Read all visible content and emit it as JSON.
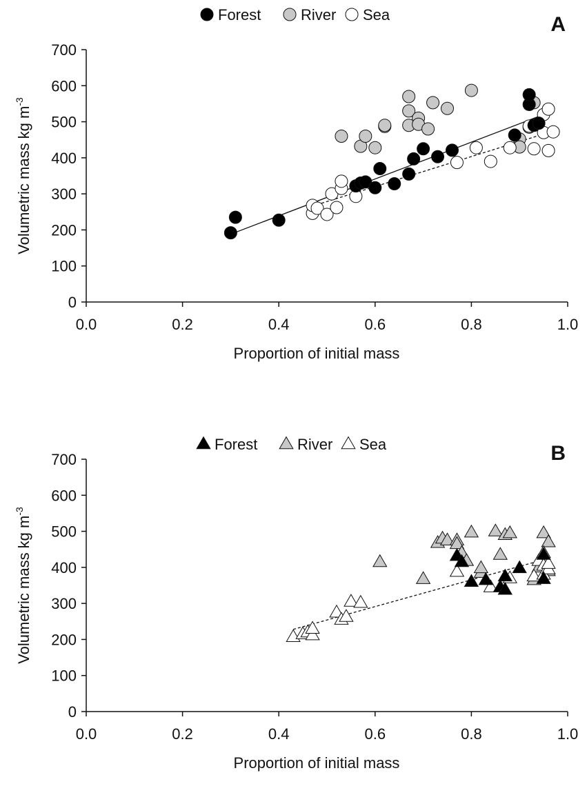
{
  "chart_data": [
    {
      "type": "scatter",
      "panel_label": "A",
      "title": "",
      "xlabel": "Proportion of initial mass",
      "ylabel": "Volumetric mass kg m",
      "ylabel_sup": "-3",
      "xlim": [
        0,
        1
      ],
      "ylim": [
        0,
        700
      ],
      "xticks": [
        "0.0",
        "0.2",
        "0.4",
        "0.6",
        "0.8",
        "1.0"
      ],
      "yticks": [
        "0",
        "100",
        "200",
        "300",
        "400",
        "500",
        "600",
        "700"
      ],
      "grid": false,
      "legend_position": "top",
      "marker": "circle",
      "series": [
        {
          "name": "Forest",
          "color": "#000000",
          "points": [
            [
              0.3,
              192
            ],
            [
              0.31,
              235
            ],
            [
              0.4,
              227
            ],
            [
              0.56,
              322
            ],
            [
              0.57,
              330
            ],
            [
              0.58,
              333
            ],
            [
              0.6,
              317
            ],
            [
              0.61,
              370
            ],
            [
              0.64,
              328
            ],
            [
              0.67,
              355
            ],
            [
              0.68,
              397
            ],
            [
              0.7,
              425
            ],
            [
              0.73,
              403
            ],
            [
              0.76,
              421
            ],
            [
              0.89,
              463
            ],
            [
              0.92,
              548
            ],
            [
              0.92,
              575
            ],
            [
              0.93,
              490
            ],
            [
              0.94,
              496
            ]
          ]
        },
        {
          "name": "River",
          "color": "#c8c8c8",
          "points": [
            [
              0.53,
              460
            ],
            [
              0.57,
              432
            ],
            [
              0.58,
              460
            ],
            [
              0.6,
              428
            ],
            [
              0.62,
              487
            ],
            [
              0.62,
              490
            ],
            [
              0.67,
              570
            ],
            [
              0.67,
              530
            ],
            [
              0.67,
              490
            ],
            [
              0.69,
              510
            ],
            [
              0.69,
              493
            ],
            [
              0.71,
              480
            ],
            [
              0.72,
              553
            ],
            [
              0.75,
              537
            ],
            [
              0.8,
              587
            ],
            [
              0.9,
              452
            ],
            [
              0.9,
              430
            ],
            [
              0.92,
              485
            ],
            [
              0.93,
              553
            ]
          ]
        },
        {
          "name": "Sea",
          "color": "#ffffff",
          "points": [
            [
              0.47,
              246
            ],
            [
              0.47,
              268
            ],
            [
              0.48,
              260
            ],
            [
              0.5,
              243
            ],
            [
              0.51,
              300
            ],
            [
              0.52,
              262
            ],
            [
              0.53,
              315
            ],
            [
              0.53,
              335
            ],
            [
              0.56,
              293
            ],
            [
              0.77,
              387
            ],
            [
              0.81,
              428
            ],
            [
              0.84,
              390
            ],
            [
              0.88,
              428
            ],
            [
              0.92,
              488
            ],
            [
              0.93,
              425
            ],
            [
              0.95,
              520
            ],
            [
              0.95,
              470
            ],
            [
              0.96,
              535
            ],
            [
              0.96,
              420
            ],
            [
              0.97,
              472
            ]
          ]
        }
      ],
      "trend_lines": [
        {
          "series": "Forest",
          "style": "solid",
          "from": [
            0.3,
            188
          ],
          "to": [
            0.94,
            515
          ]
        },
        {
          "series": "Sea",
          "style": "dashed",
          "from": [
            0.46,
            262
          ],
          "to": [
            0.96,
            470
          ]
        }
      ]
    },
    {
      "type": "scatter",
      "panel_label": "B",
      "title": "",
      "xlabel": "Proportion of initial mass",
      "ylabel": "Volumetric mass kg m",
      "ylabel_sup": "-3",
      "xlim": [
        0,
        1
      ],
      "ylim": [
        0,
        700
      ],
      "xticks": [
        "0.0",
        "0.2",
        "0.4",
        "0.6",
        "0.8",
        "1.0"
      ],
      "yticks": [
        "0",
        "100",
        "200",
        "300",
        "400",
        "500",
        "600",
        "700"
      ],
      "grid": false,
      "legend_position": "top",
      "marker": "triangle",
      "series": [
        {
          "name": "Forest",
          "color": "#000000",
          "points": [
            [
              0.77,
              432
            ],
            [
              0.78,
              415
            ],
            [
              0.8,
              360
            ],
            [
              0.83,
              365
            ],
            [
              0.86,
              345
            ],
            [
              0.87,
              338
            ],
            [
              0.87,
              375
            ],
            [
              0.9,
              398
            ],
            [
              0.95,
              368
            ],
            [
              0.95,
              435
            ]
          ]
        },
        {
          "name": "River",
          "color": "#c8c8c8",
          "points": [
            [
              0.61,
              415
            ],
            [
              0.7,
              368
            ],
            [
              0.73,
              468
            ],
            [
              0.74,
              480
            ],
            [
              0.75,
              475
            ],
            [
              0.77,
              475
            ],
            [
              0.77,
              465
            ],
            [
              0.78,
              440
            ],
            [
              0.79,
              418
            ],
            [
              0.8,
              497
            ],
            [
              0.82,
              385
            ],
            [
              0.82,
              398
            ],
            [
              0.85,
              500
            ],
            [
              0.86,
              435
            ],
            [
              0.87,
              490
            ],
            [
              0.88,
              495
            ],
            [
              0.93,
              365
            ],
            [
              0.94,
              400
            ],
            [
              0.95,
              495
            ],
            [
              0.96,
              470
            ],
            [
              0.96,
              390
            ]
          ]
        },
        {
          "name": "Sea",
          "color": "#ffffff",
          "points": [
            [
              0.43,
              207
            ],
            [
              0.45,
              215
            ],
            [
              0.46,
              220
            ],
            [
              0.47,
              212
            ],
            [
              0.47,
              230
            ],
            [
              0.52,
              275
            ],
            [
              0.53,
              255
            ],
            [
              0.54,
              263
            ],
            [
              0.55,
              305
            ],
            [
              0.57,
              302
            ],
            [
              0.77,
              388
            ],
            [
              0.84,
              345
            ],
            [
              0.88,
              370
            ],
            [
              0.93,
              375
            ],
            [
              0.94,
              418
            ],
            [
              0.95,
              405
            ],
            [
              0.95,
              380
            ],
            [
              0.96,
              395
            ],
            [
              0.96,
              410
            ],
            [
              0.95,
              440
            ]
          ]
        }
      ],
      "trend_lines": [
        {
          "series": "All",
          "style": "dashed",
          "from": [
            0.43,
            228
          ],
          "to": [
            0.96,
            425
          ]
        }
      ]
    }
  ]
}
